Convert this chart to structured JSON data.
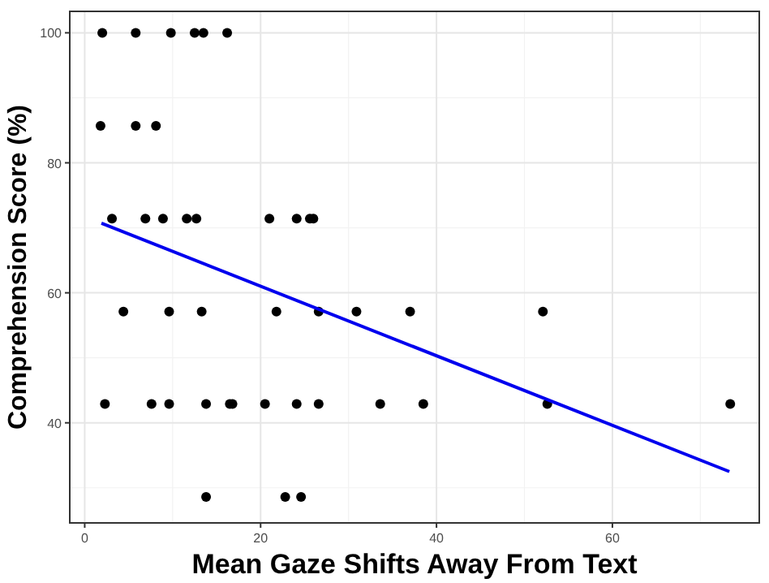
{
  "chart_data": {
    "type": "scatter",
    "xlabel": "Mean Gaze Shifts Away From Text",
    "ylabel": "Comprehension Score (%)",
    "xlim": [
      -1.7,
      76.7
    ],
    "ylim": [
      24.6,
      103.3
    ],
    "xticks": [
      0,
      20,
      40,
      60
    ],
    "yticks": [
      40,
      60,
      80,
      100
    ],
    "grid": true,
    "series": [
      {
        "marker": "circle",
        "color": "#000000",
        "x": [
          2.0,
          5.8,
          9.8,
          12.5,
          13.5,
          16.2,
          1.8,
          5.8,
          8.1,
          3.1,
          6.9,
          8.9,
          11.6,
          12.7,
          21.0,
          24.1,
          25.6,
          26.0,
          4.4,
          9.6,
          13.3,
          21.8,
          26.6,
          30.9,
          37.0,
          52.1,
          2.3,
          7.6,
          9.6,
          13.8,
          16.5,
          16.8,
          20.5,
          24.1,
          26.6,
          33.6,
          38.5,
          52.6,
          73.4,
          13.8,
          22.8,
          24.6
        ],
        "values": [
          100,
          100,
          100,
          100,
          100,
          100,
          85.7,
          85.7,
          85.7,
          71.4,
          71.4,
          71.4,
          71.4,
          71.4,
          71.4,
          71.4,
          71.4,
          71.4,
          57.1,
          57.1,
          57.1,
          57.1,
          57.1,
          57.1,
          57.1,
          57.1,
          42.9,
          42.9,
          42.9,
          42.9,
          42.9,
          42.9,
          42.9,
          42.9,
          42.9,
          42.9,
          42.9,
          42.9,
          42.9,
          28.6,
          28.6,
          28.6
        ]
      },
      {
        "type": "line",
        "color": "#0000ee",
        "x": [
          1.9,
          73.3
        ],
        "values": [
          70.7,
          32.5
        ]
      }
    ]
  }
}
